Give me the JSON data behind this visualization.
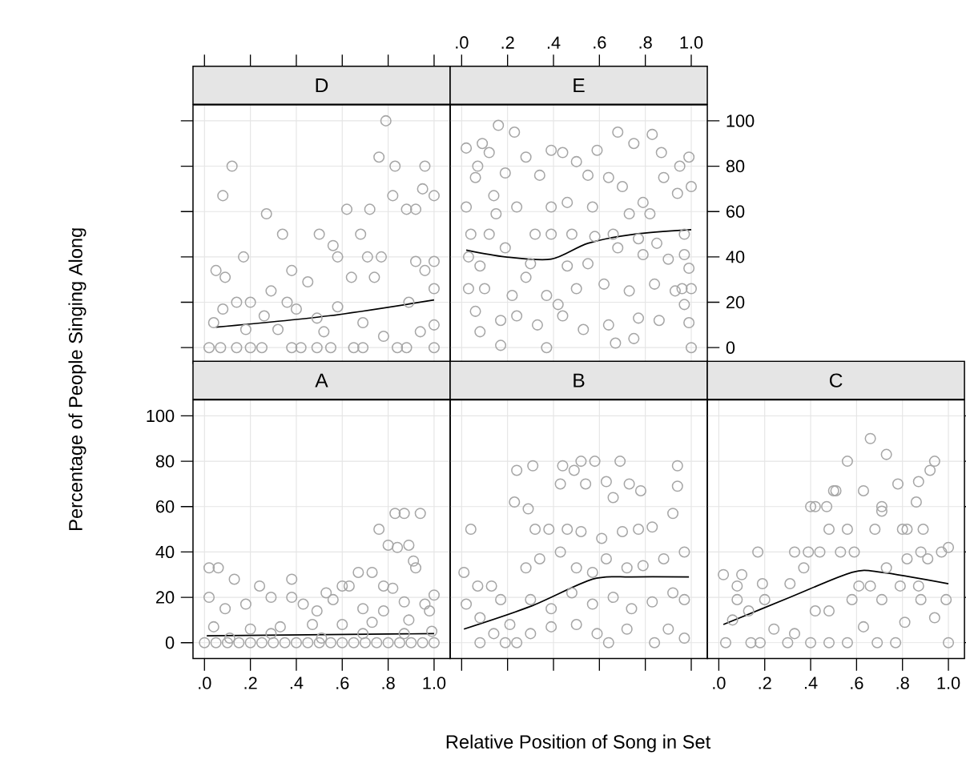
{
  "chart_data": [
    {
      "type": "scatter",
      "title": "D",
      "grid": true,
      "tick_labels": false,
      "xlim": [
        -0.05,
        1.07
      ],
      "ylim": [
        -7,
        107
      ],
      "xticks": [
        {
          "value": 0,
          "label": null
        },
        {
          "value": 0.2,
          "label": null
        },
        {
          "value": 0.4,
          "label": null
        },
        {
          "value": 0.6,
          "label": null
        },
        {
          "value": 0.8,
          "label": null
        },
        {
          "value": 1,
          "label": null
        }
      ],
      "yticks": [
        0,
        20,
        40,
        60,
        80,
        100
      ],
      "series": [
        {
          "marker": "circle",
          "color": "#a6a6a6",
          "x": [
            0.79,
            0.12,
            0.08,
            0.76,
            0.83,
            0.96,
            0.95,
            1.0,
            0.82,
            0.27,
            0.62,
            0.72,
            0.88,
            0.92,
            0.34,
            0.5,
            0.68,
            0.17,
            0.56,
            0.58,
            0.71,
            0.77,
            0.05,
            0.09,
            0.38,
            0.45,
            0.64,
            0.74,
            0.92,
            1.0,
            0.96,
            1.0,
            0.29,
            0.14,
            0.2,
            0.36,
            0.58,
            0.89,
            0.08,
            0.26,
            0.4,
            0.49,
            0.69,
            0.04,
            0.18,
            0.32,
            0.52,
            0.78,
            0.94,
            1.0,
            0.02,
            0.07,
            0.14,
            0.2,
            0.25,
            0.38,
            0.42,
            0.49,
            0.55,
            0.65,
            0.69,
            0.84,
            0.88,
            1.0
          ],
          "values": [
            100,
            80,
            67,
            84,
            80,
            80,
            70,
            67,
            67,
            59,
            61,
            61,
            61,
            61,
            50,
            50,
            50,
            40,
            45,
            40,
            40,
            40,
            34,
            31,
            34,
            29,
            31,
            31,
            38,
            38,
            34,
            26,
            25,
            20,
            20,
            20,
            18,
            20,
            17,
            14,
            17,
            13,
            11,
            11,
            8,
            8,
            7,
            5,
            7,
            10,
            0,
            0,
            0,
            0,
            0,
            0,
            0,
            0,
            0,
            0,
            0,
            0,
            0,
            0
          ]
        },
        {
          "type": "line",
          "color": "#000000",
          "x": [
            0.05,
            0.54,
            1.0
          ],
          "values": [
            9,
            14,
            21
          ]
        }
      ]
    },
    {
      "type": "scatter",
      "title": "E",
      "grid": true,
      "xlim": [
        -0.05,
        1.07
      ],
      "ylim": [
        -7,
        107
      ],
      "xticks": [
        {
          "value": 0,
          "label": ".0"
        },
        {
          "value": 0.2,
          "label": ".2"
        },
        {
          "value": 0.4,
          "label": ".4"
        },
        {
          "value": 0.6,
          "label": ".6"
        },
        {
          "value": 0.8,
          "label": ".8"
        },
        {
          "value": 1,
          "label": "1.0"
        }
      ],
      "yticks": [
        0,
        20,
        40,
        60,
        80,
        100
      ],
      "series": [
        {
          "marker": "circle",
          "color": "#a6a6a6",
          "x": [
            0.16,
            0.23,
            0.02,
            0.09,
            0.12,
            0.07,
            0.06,
            0.02,
            0.14,
            0.19,
            0.28,
            0.34,
            0.39,
            0.44,
            0.5,
            0.59,
            0.68,
            0.75,
            0.83,
            0.87,
            0.95,
            0.55,
            0.64,
            0.7,
            0.79,
            0.88,
            0.94,
            0.24,
            0.15,
            0.39,
            0.46,
            0.57,
            0.73,
            0.82,
            0.04,
            0.12,
            0.32,
            0.39,
            0.48,
            0.58,
            0.66,
            0.77,
            0.85,
            0.03,
            0.08,
            0.19,
            0.3,
            0.46,
            0.55,
            0.68,
            0.79,
            0.9,
            0.97,
            0.03,
            0.1,
            0.22,
            0.28,
            0.37,
            0.42,
            0.5,
            0.62,
            0.73,
            0.84,
            0.93,
            0.06,
            0.17,
            0.24,
            0.33,
            0.44,
            0.53,
            0.64,
            0.77,
            0.86,
            0.08,
            0.17,
            0.37,
            0.67,
            0.75,
            0.96,
            1.0,
            0.99,
            0.97,
            1.0,
            0.99,
            1.0,
            0.99,
            0.97
          ],
          "values": [
            98,
            95,
            88,
            90,
            86,
            80,
            75,
            62,
            67,
            77,
            84,
            76,
            87,
            86,
            82,
            87,
            95,
            90,
            94,
            86,
            80,
            76,
            75,
            71,
            64,
            75,
            68,
            62,
            59,
            62,
            64,
            62,
            59,
            59,
            50,
            50,
            50,
            50,
            50,
            49,
            50,
            48,
            46,
            40,
            36,
            44,
            37,
            36,
            37,
            44,
            41,
            39,
            41,
            26,
            26,
            23,
            31,
            23,
            19,
            26,
            28,
            25,
            28,
            25,
            16,
            12,
            14,
            10,
            14,
            8,
            10,
            13,
            12,
            7,
            1,
            0,
            2,
            4,
            26,
            0,
            11,
            19,
            26,
            35,
            71,
            84,
            50
          ]
        },
        {
          "type": "line",
          "color": "#000000",
          "x": [
            0.02,
            0.19,
            0.39,
            0.55,
            0.75,
            1.0
          ],
          "values": [
            43,
            40,
            39,
            46,
            50,
            52
          ]
        }
      ]
    },
    {
      "type": "scatter",
      "title": "A",
      "xlabel": "Relative Position of Song in Set",
      "ylabel": "Percentage of People Singing Along",
      "grid": true,
      "xlim": [
        -0.05,
        1.07
      ],
      "ylim": [
        -7,
        107
      ],
      "xticks": [
        {
          "value": 0,
          "label": ".0"
        },
        {
          "value": 0.2,
          "label": ".2"
        },
        {
          "value": 0.4,
          "label": ".4"
        },
        {
          "value": 0.6,
          "label": ".6"
        },
        {
          "value": 0.8,
          "label": ".8"
        },
        {
          "value": 1,
          "label": "1.0"
        }
      ],
      "yticks": [
        0,
        20,
        40,
        60,
        80,
        100
      ],
      "series": [
        {
          "marker": "circle",
          "color": "#a6a6a6",
          "x": [
            0.02,
            0.06,
            0.02,
            0.13,
            0.09,
            0.18,
            0.24,
            0.29,
            0.38,
            0.38,
            0.43,
            0.49,
            0.53,
            0.56,
            0.6,
            0.63,
            0.67,
            0.73,
            0.76,
            0.83,
            0.87,
            0.94,
            0.8,
            0.84,
            0.89,
            0.91,
            0.92,
            0.78,
            0.82,
            0.87,
            0.96,
            1.0,
            0.69,
            0.78,
            0.04,
            0.2,
            0.33,
            0.47,
            0.6,
            0.73,
            0.89,
            0.98,
            0.11,
            0.29,
            0.51,
            0.69,
            0.87,
            0.99,
            0.0,
            0.05,
            0.1,
            0.15,
            0.2,
            0.25,
            0.3,
            0.35,
            0.4,
            0.45,
            0.5,
            0.55,
            0.6,
            0.65,
            0.7,
            0.75,
            0.8,
            0.85,
            0.9,
            0.95,
            1.0
          ],
          "values": [
            33,
            33,
            20,
            28,
            15,
            17,
            25,
            20,
            28,
            20,
            17,
            14,
            22,
            19,
            25,
            25,
            31,
            31,
            50,
            57,
            57,
            57,
            43,
            42,
            43,
            36,
            33,
            25,
            24,
            18,
            17,
            21,
            15,
            14,
            7,
            6,
            7,
            8,
            8,
            9,
            10,
            14,
            2,
            4,
            2,
            4,
            4,
            5,
            0,
            0,
            0,
            0,
            0,
            0,
            0,
            0,
            0,
            0,
            0,
            0,
            0,
            0,
            0,
            0,
            0,
            0,
            0,
            0,
            0
          ]
        },
        {
          "type": "line",
          "color": "#000000",
          "x": [
            0.01,
            1.0
          ],
          "values": [
            3,
            4
          ]
        }
      ]
    },
    {
      "type": "scatter",
      "title": "B",
      "grid": true,
      "tick_labels": false,
      "xlim": [
        -0.05,
        1.07
      ],
      "ylim": [
        -7,
        107
      ],
      "xticks": [
        {
          "value": 0,
          "label": null
        },
        {
          "value": 0.2,
          "label": null
        },
        {
          "value": 0.4,
          "label": null
        },
        {
          "value": 0.6,
          "label": null
        },
        {
          "value": 0.8,
          "label": null
        },
        {
          "value": 1,
          "label": null
        }
      ],
      "yticks": [
        0,
        20,
        40,
        60,
        80,
        100
      ],
      "series": [
        {
          "marker": "circle",
          "color": "#a6a6a6",
          "x": [
            0.04,
            0.01,
            0.07,
            0.13,
            0.02,
            0.08,
            0.14,
            0.08,
            0.19,
            0.24,
            0.24,
            0.31,
            0.23,
            0.29,
            0.44,
            0.52,
            0.58,
            0.69,
            0.43,
            0.54,
            0.49,
            0.63,
            0.66,
            0.73,
            0.78,
            0.32,
            0.38,
            0.46,
            0.52,
            0.61,
            0.7,
            0.77,
            0.83,
            0.92,
            0.94,
            0.94,
            0.28,
            0.34,
            0.43,
            0.5,
            0.57,
            0.63,
            0.72,
            0.79,
            0.88,
            0.97,
            0.3,
            0.39,
            0.48,
            0.57,
            0.66,
            0.74,
            0.83,
            0.92,
            0.97,
            0.3,
            0.39,
            0.5,
            0.59,
            0.64,
            0.72,
            0.84,
            0.9,
            0.97,
            0.17,
            0.21
          ],
          "values": [
            50,
            31,
            25,
            25,
            17,
            11,
            4,
            0,
            0,
            0,
            76,
            78,
            62,
            59,
            78,
            80,
            80,
            80,
            70,
            70,
            76,
            71,
            64,
            70,
            67,
            50,
            50,
            50,
            49,
            46,
            49,
            50,
            51,
            57,
            78,
            69,
            33,
            37,
            40,
            33,
            31,
            37,
            33,
            34,
            37,
            40,
            19,
            15,
            22,
            17,
            20,
            15,
            18,
            22,
            19,
            4,
            7,
            8,
            4,
            0,
            6,
            0,
            6,
            2,
            19,
            8
          ]
        },
        {
          "type": "line",
          "color": "#000000",
          "x": [
            0.01,
            0.3,
            0.57,
            0.74,
            0.99
          ],
          "values": [
            6,
            16,
            28,
            29,
            29
          ]
        }
      ]
    },
    {
      "type": "scatter",
      "title": "C",
      "grid": true,
      "tick_labels": "x",
      "xlim": [
        -0.05,
        1.07
      ],
      "ylim": [
        -7,
        107
      ],
      "xticks": [
        {
          "value": 0,
          "label": ".0"
        },
        {
          "value": 0.2,
          "label": ".2"
        },
        {
          "value": 0.4,
          "label": ".4"
        },
        {
          "value": 0.6,
          "label": ".6"
        },
        {
          "value": 0.8,
          "label": ".8"
        },
        {
          "value": 1,
          "label": "1.0"
        }
      ],
      "yticks": [
        0,
        20,
        40,
        60,
        80,
        100
      ],
      "series": [
        {
          "marker": "circle",
          "color": "#a6a6a6",
          "x": [
            0.66,
            0.73,
            0.56,
            0.94,
            0.92,
            0.87,
            0.78,
            0.86,
            0.5,
            0.51,
            0.63,
            0.4,
            0.42,
            0.47,
            0.71,
            0.71,
            0.48,
            0.56,
            0.68,
            0.8,
            0.82,
            0.89,
            0.17,
            0.33,
            0.39,
            0.44,
            0.53,
            0.59,
            0.88,
            1.0,
            0.97,
            0.91,
            0.82,
            0.02,
            0.1,
            0.08,
            0.19,
            0.31,
            0.37,
            0.61,
            0.66,
            0.73,
            0.79,
            0.87,
            0.08,
            0.2,
            0.42,
            0.48,
            0.58,
            0.71,
            0.88,
            0.99,
            0.06,
            0.13,
            0.24,
            0.33,
            0.63,
            0.81,
            0.94,
            0.03,
            0.14,
            0.18,
            0.3,
            0.4,
            0.48,
            0.56,
            0.69,
            0.77,
            1.0
          ],
          "values": [
            90,
            83,
            80,
            80,
            76,
            71,
            70,
            62,
            67,
            67,
            67,
            60,
            60,
            60,
            60,
            58,
            50,
            50,
            50,
            50,
            50,
            50,
            40,
            40,
            40,
            40,
            40,
            40,
            40,
            42,
            40,
            37,
            37,
            30,
            30,
            25,
            26,
            26,
            33,
            25,
            25,
            33,
            25,
            25,
            19,
            19,
            14,
            14,
            19,
            19,
            19,
            19,
            10,
            14,
            6,
            4,
            7,
            9,
            11,
            0,
            0,
            0,
            0,
            0,
            0,
            0,
            0,
            0,
            0
          ]
        },
        {
          "type": "line",
          "color": "#000000",
          "x": [
            0.02,
            0.31,
            0.58,
            0.71,
            1.0
          ],
          "values": [
            8,
            20,
            31,
            31,
            26
          ]
        }
      ]
    }
  ]
}
